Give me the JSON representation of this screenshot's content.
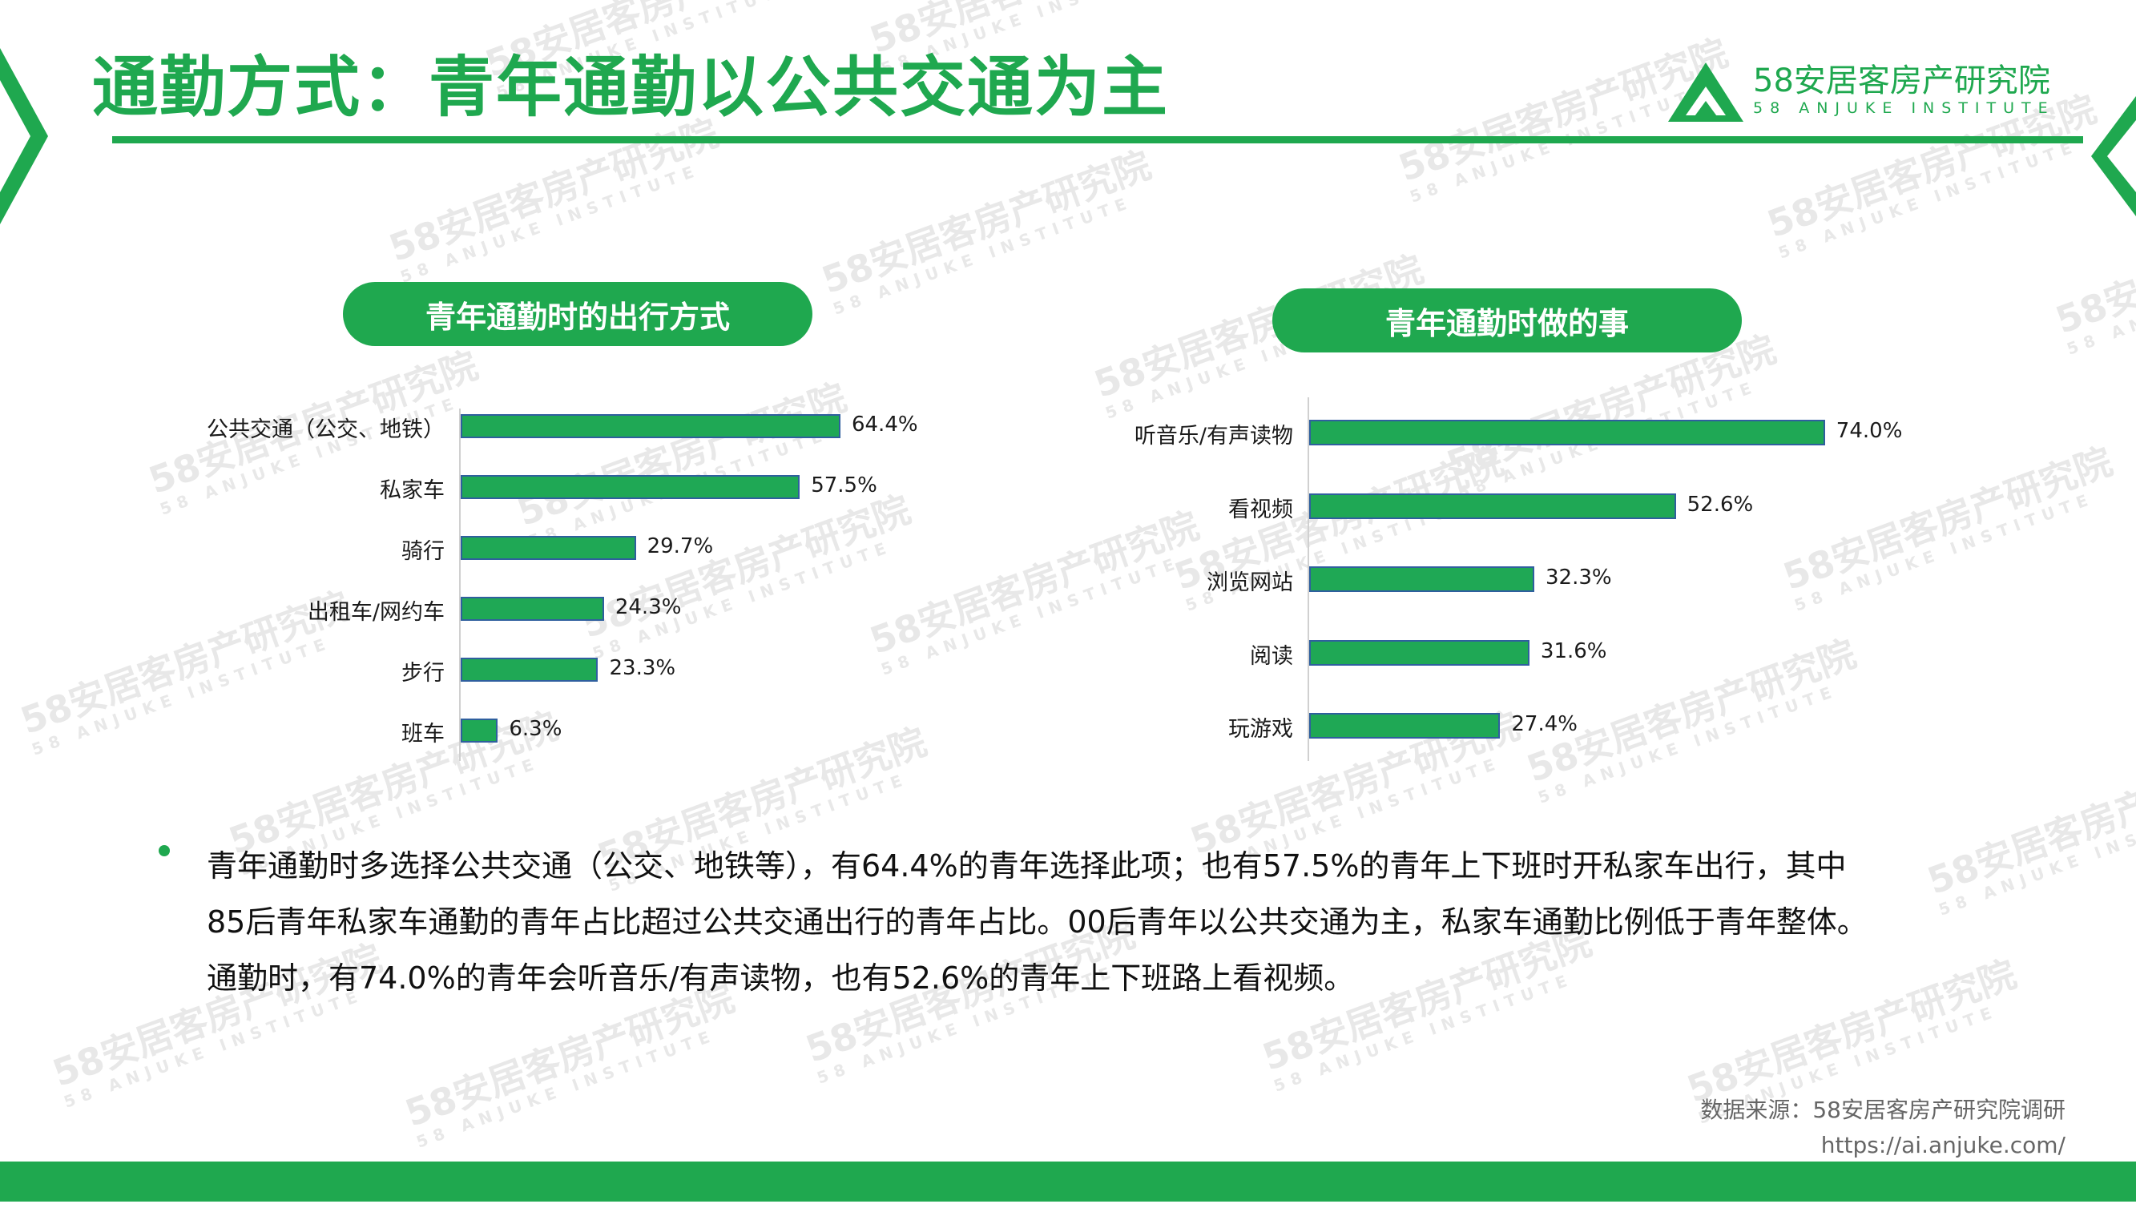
{
  "header": {
    "title": "通勤方式：青年通勤以公共交通为主",
    "logo_name": "58安居客房产研究院",
    "logo_sub": "58 ANJUKE INSTITUTE",
    "watermark_text": "58安居客房产研究院",
    "watermark_sub": "58 ANJUKE INSTITUTE"
  },
  "colors": {
    "brand_green": "#1fa84f",
    "bar_fill": "#1fa855",
    "bar_border": "#2f5f9e"
  },
  "chart_data": [
    {
      "type": "bar",
      "orientation": "horizontal",
      "title": "青年通勤时的出行方式",
      "categories": [
        "公共交通（公交、地铁）",
        "私家车",
        "骑行",
        "出租车/网约车",
        "步行",
        "班车"
      ],
      "values": [
        64.4,
        57.5,
        29.7,
        24.3,
        23.3,
        6.3
      ],
      "value_labels": [
        "64.4%",
        "57.5%",
        "29.7%",
        "24.3%",
        "23.3%",
        "6.3%"
      ],
      "unit": "%",
      "xlim": [
        0,
        100
      ],
      "grid": false,
      "legend": "none"
    },
    {
      "type": "bar",
      "orientation": "horizontal",
      "title": "青年通勤时做的事",
      "categories": [
        "听音乐/有声读物",
        "看视频",
        "浏览网站",
        "阅读",
        "玩游戏"
      ],
      "values": [
        74.0,
        52.6,
        32.3,
        31.6,
        27.4
      ],
      "value_labels": [
        "74.0%",
        "52.6%",
        "32.3%",
        "31.6%",
        "27.4%"
      ],
      "unit": "%",
      "xlim": [
        0,
        100
      ],
      "grid": false,
      "legend": "none"
    }
  ],
  "note": {
    "text": "青年通勤时多选择公共交通（公交、地铁等），有64.4%的青年选择此项；也有57.5%的青年上下班时开私家车出行，其中85后青年私家车通勤的青年占比超过公共交通出行的青年占比。00后青年以公共交通为主，私家车通勤比例低于青年整体。通勤时，有74.0%的青年会听音乐/有声读物，也有52.6%的青年上下班路上看视频。"
  },
  "source": {
    "line1": "数据来源：58安居客房产研究院调研",
    "line2": "https://ai.anjuke.com/"
  }
}
